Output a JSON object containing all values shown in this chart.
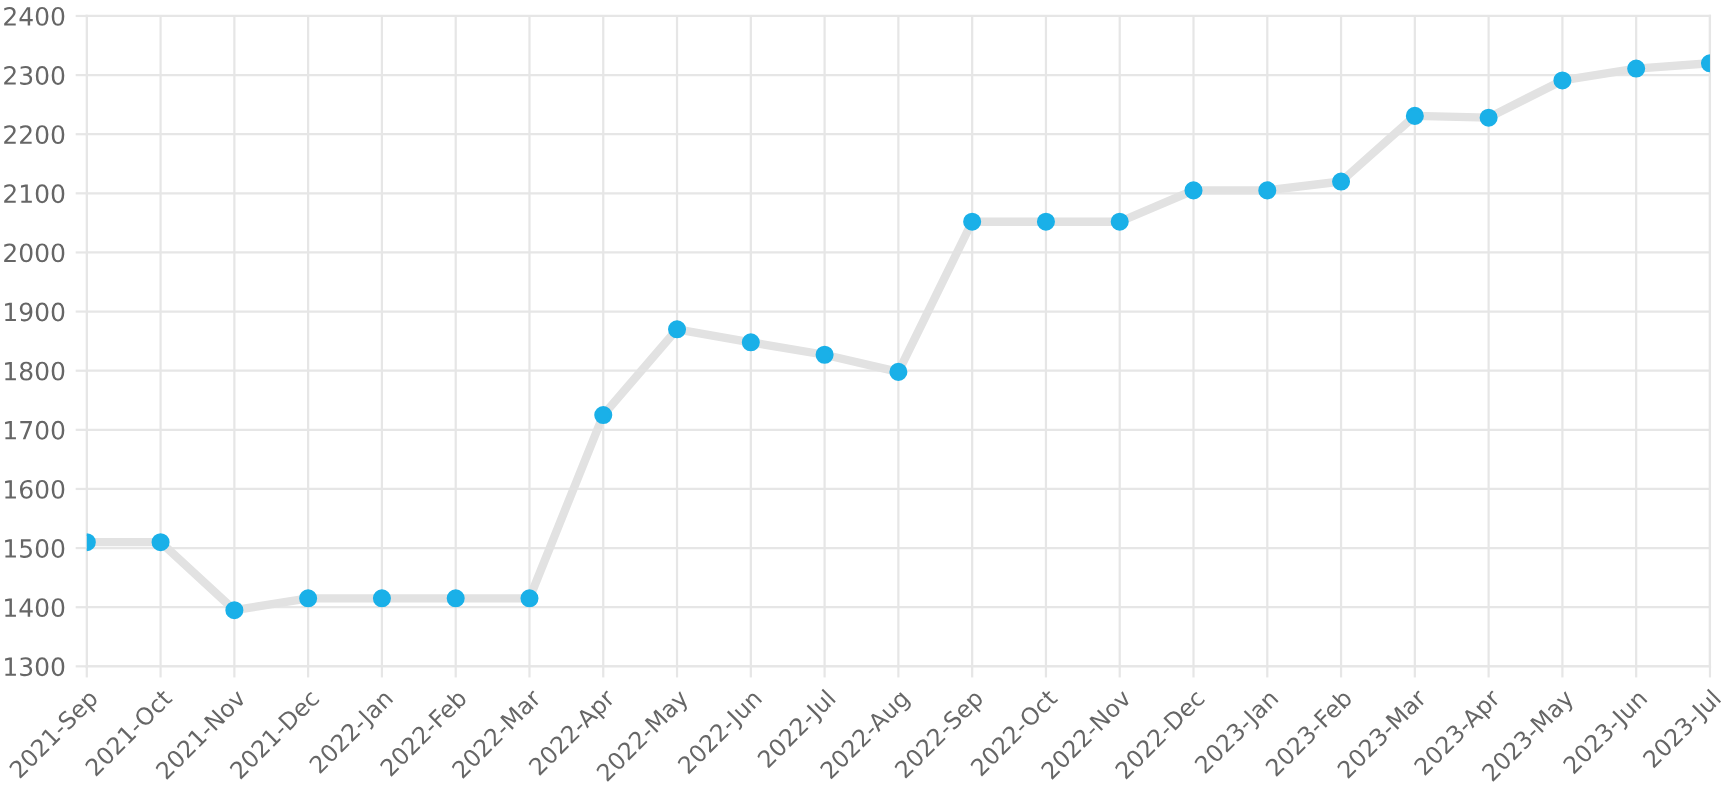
{
  "chart_data": {
    "type": "line",
    "categories": [
      "2021-Sep",
      "2021-Oct",
      "2021-Nov",
      "2021-Dec",
      "2022-Jan",
      "2022-Feb",
      "2022-Mar",
      "2022-Apr",
      "2022-May",
      "2022-Jun",
      "2022-Jul",
      "2022-Aug",
      "2022-Sep",
      "2022-Oct",
      "2022-Nov",
      "2022-Dec",
      "2023-Jan",
      "2023-Feb",
      "2023-Mar",
      "2023-Apr",
      "2023-May",
      "2023-Jun",
      "2023-Jul"
    ],
    "series": [
      {
        "color": "#1ab0e8",
        "values": [
          1510,
          1510,
          1395,
          1415,
          1415,
          1415,
          1415,
          1725,
          1870,
          1848,
          1827,
          1798,
          2052,
          2052,
          2052,
          2105,
          2105,
          2120,
          2231,
          2228,
          2291,
          2311,
          2320
        ]
      }
    ],
    "ylim": [
      1300,
      2400
    ],
    "yticks": [
      1300,
      1400,
      1500,
      1600,
      1700,
      1800,
      1900,
      2000,
      2100,
      2200,
      2300,
      2400
    ],
    "grid": true,
    "marker": "circle",
    "line_style": "solid"
  }
}
